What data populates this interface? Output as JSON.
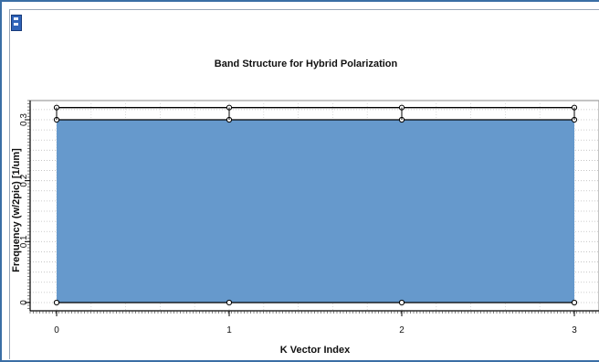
{
  "window": {
    "icon": "app-icon"
  },
  "chart_data": {
    "type": "area",
    "title": "Band Structure for Hybrid Polarization",
    "xlabel": "K Vector Index",
    "ylabel": "Frequency (w/2pic) [1/um]",
    "x": [
      0,
      1,
      2,
      3
    ],
    "xlim": [
      0,
      3
    ],
    "ylim": [
      0,
      0.3
    ],
    "xticks": [
      0,
      1,
      2,
      3
    ],
    "yticks": [
      0,
      0.1,
      0.2,
      0.3
    ],
    "ytick_labels": [
      "0",
      "0.1",
      "0.2",
      "0.3"
    ],
    "grid": true,
    "series": [
      {
        "values": [
          0,
          0,
          0,
          0
        ],
        "color": "#000000"
      },
      {
        "values": [
          0.3,
          0.3,
          0.3,
          0.3
        ],
        "color": "#000000"
      },
      {
        "values": [
          0.32,
          0.32,
          0.32,
          0.32
        ],
        "color": "#000000"
      }
    ],
    "fill": {
      "from": 0,
      "to": 0.3,
      "color": "#6699cc"
    }
  }
}
